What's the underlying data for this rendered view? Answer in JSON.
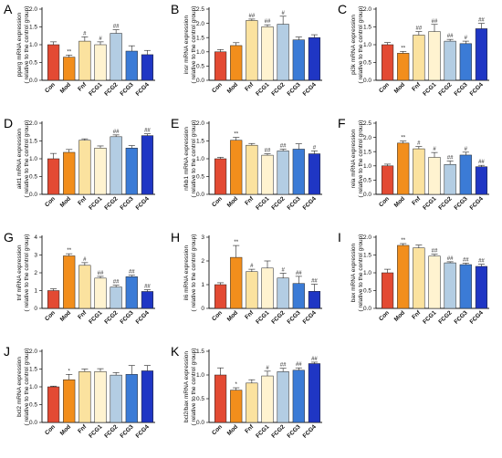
{
  "colors": [
    "#e34a33",
    "#f28e1c",
    "#fbe29f",
    "#fff3d0",
    "#b3cde3",
    "#3b7bd6",
    "#1f36c4"
  ],
  "chart_data": [
    {
      "letter": "A",
      "type": "bar",
      "ylabel": "pparg mRNA expression\n( relative to the control group)",
      "categories": [
        "Con",
        "Mod",
        "Fnf",
        "FCG1",
        "FCG2",
        "FCG3",
        "FCG4"
      ],
      "values": [
        1.0,
        0.65,
        1.1,
        1.0,
        1.32,
        0.82,
        0.72
      ],
      "errors": [
        0.08,
        0.06,
        0.12,
        0.08,
        0.1,
        0.15,
        0.12
      ],
      "sig": [
        "",
        "**",
        "#",
        "#",
        "##",
        "",
        ""
      ],
      "ylim": [
        0,
        2.0
      ],
      "ticks": [
        0.0,
        0.5,
        1.0,
        1.5,
        2.0
      ],
      "ticklabels": [
        "0.0",
        "0.5",
        "1.0",
        "1.5",
        "2.0"
      ]
    },
    {
      "letter": "B",
      "type": "bar",
      "ylabel": "insr mRNA expression\n( relative to the control group)",
      "categories": [
        "Con",
        "Mod",
        "Fnf",
        "FCG1",
        "FCG2",
        "FCG3",
        "FCG4"
      ],
      "values": [
        1.0,
        1.22,
        2.1,
        1.88,
        1.97,
        1.42,
        1.5
      ],
      "errors": [
        0.08,
        0.1,
        0.05,
        0.07,
        0.28,
        0.1,
        0.1
      ],
      "sig": [
        "",
        "",
        "##",
        "##",
        "#",
        "",
        ""
      ],
      "ylim": [
        0,
        2.5
      ],
      "ticks": [
        0.0,
        0.5,
        1.0,
        1.5,
        2.0,
        2.5
      ],
      "ticklabels": [
        "0.0",
        "0.5",
        "1.0",
        "1.5",
        "2.0",
        "2.5"
      ]
    },
    {
      "letter": "C",
      "type": "bar",
      "ylabel": "pi3k mRNA expression\n( relative to the control group)",
      "categories": [
        "Con",
        "Mod",
        "Fnf",
        "FCG1",
        "FCG2",
        "FCG3",
        "FCG4"
      ],
      "values": [
        1.0,
        0.76,
        1.27,
        1.37,
        1.1,
        1.03,
        1.45
      ],
      "errors": [
        0.06,
        0.05,
        0.1,
        0.2,
        0.05,
        0.07,
        0.15
      ],
      "sig": [
        "",
        "**",
        "##",
        "##",
        "##",
        "#",
        "##"
      ],
      "ylim": [
        0,
        2.0
      ],
      "ticks": [
        0.0,
        0.5,
        1.0,
        1.5,
        2.0
      ],
      "ticklabels": [
        "0.0",
        "0.5",
        "1.0",
        "1.5",
        "2.0"
      ]
    },
    {
      "letter": "D",
      "type": "bar",
      "ylabel": "akt1 mRNA expression\n( relative to the control group)",
      "categories": [
        "Con",
        "Mod",
        "Fnf",
        "FCG1",
        "FCG2",
        "FCG3",
        "FCG4"
      ],
      "values": [
        1.0,
        1.18,
        1.52,
        1.3,
        1.62,
        1.3,
        1.65
      ],
      "errors": [
        0.15,
        0.08,
        0.04,
        0.06,
        0.05,
        0.07,
        0.05
      ],
      "sig": [
        "",
        "",
        "",
        "",
        "##",
        "",
        "##"
      ],
      "ylim": [
        0,
        2.0
      ],
      "ticks": [
        0.0,
        0.5,
        1.0,
        1.5,
        2.0
      ],
      "ticklabels": [
        "0.0",
        "0.5",
        "1.0",
        "1.5",
        "2.0"
      ]
    },
    {
      "letter": "E",
      "type": "bar",
      "ylabel": "nfkb1 mRNA expression\n( relative to the control group)",
      "categories": [
        "Con",
        "Mod",
        "Fnf",
        "FCG1",
        "FCG2",
        "FCG3",
        "FCG4"
      ],
      "values": [
        1.0,
        1.52,
        1.38,
        1.1,
        1.22,
        1.27,
        1.14
      ],
      "errors": [
        0.04,
        0.08,
        0.05,
        0.04,
        0.05,
        0.15,
        0.08
      ],
      "sig": [
        "",
        "**",
        "",
        "##",
        "##",
        "",
        "#"
      ],
      "ylim": [
        0,
        2.0
      ],
      "ticks": [
        0.0,
        0.5,
        1.0,
        1.5,
        2.0
      ],
      "ticklabels": [
        "0.0",
        "0.5",
        "1.0",
        "1.5",
        "2.0"
      ]
    },
    {
      "letter": "F",
      "type": "bar",
      "ylabel": "rela mRNA expression\n( relative to the control group)",
      "categories": [
        "Con",
        "Mod",
        "Fnf",
        "FCG1",
        "FCG2",
        "FCG3",
        "FCG4"
      ],
      "values": [
        1.0,
        1.8,
        1.6,
        1.3,
        1.05,
        1.38,
        0.97
      ],
      "errors": [
        0.06,
        0.07,
        0.08,
        0.17,
        0.12,
        0.1,
        0.05
      ],
      "sig": [
        "",
        "**",
        "#",
        "#",
        "##",
        "#",
        "##"
      ],
      "ylim": [
        0,
        2.5
      ],
      "ticks": [
        0.0,
        0.5,
        1.0,
        1.5,
        2.0,
        2.5
      ],
      "ticklabels": [
        "0.0",
        "0.5",
        "1.0",
        "1.5",
        "2.0",
        "2.5"
      ]
    },
    {
      "letter": "G",
      "type": "bar",
      "ylabel": "tnf mRNA expression\n( relative to the control group)",
      "categories": [
        "Con",
        "Mod",
        "Fnf",
        "FCG1",
        "FCG2",
        "FCG3",
        "FCG4"
      ],
      "values": [
        1.0,
        2.95,
        2.42,
        1.7,
        1.2,
        1.78,
        0.95
      ],
      "errors": [
        0.1,
        0.12,
        0.15,
        0.1,
        0.1,
        0.08,
        0.1
      ],
      "sig": [
        "",
        "**",
        "#",
        "##",
        "##",
        "##",
        "##"
      ],
      "ylim": [
        0,
        4
      ],
      "ticks": [
        0,
        1,
        2,
        3,
        4
      ],
      "ticklabels": [
        "0",
        "1",
        "2",
        "3",
        "4"
      ]
    },
    {
      "letter": "H",
      "type": "bar",
      "ylabel": "il6 mRNA expression\n( relative to the control group)",
      "categories": [
        "Con",
        "Mod",
        "Fnf",
        "FCG1",
        "FCG2",
        "FCG3",
        "FCG4"
      ],
      "values": [
        1.0,
        2.15,
        1.55,
        1.7,
        1.28,
        1.05,
        0.72
      ],
      "errors": [
        0.08,
        0.5,
        0.1,
        0.3,
        0.2,
        0.3,
        0.3
      ],
      "sig": [
        "",
        "**",
        "#",
        "",
        "#",
        "##",
        "##"
      ],
      "ylim": [
        0,
        3
      ],
      "ticks": [
        0,
        1,
        2,
        3
      ],
      "ticklabels": [
        "0",
        "1",
        "2",
        "3"
      ]
    },
    {
      "letter": "I",
      "type": "bar",
      "ylabel": "bax mRNA expression\n( relative to the control group)",
      "categories": [
        "Con",
        "Mod",
        "Fnf",
        "FCG1",
        "FCG2",
        "FCG3",
        "FCG4"
      ],
      "values": [
        1.0,
        1.77,
        1.7,
        1.47,
        1.28,
        1.23,
        1.18
      ],
      "errors": [
        0.1,
        0.05,
        0.08,
        0.05,
        0.03,
        0.04,
        0.06
      ],
      "sig": [
        "",
        "**",
        "",
        "##",
        "##",
        "##",
        "##"
      ],
      "ylim": [
        0,
        2.0
      ],
      "ticks": [
        0.0,
        0.5,
        1.0,
        1.5,
        2.0
      ],
      "ticklabels": [
        "0.0",
        "0.5",
        "1.0",
        "1.5",
        "2.0"
      ]
    },
    {
      "letter": "J",
      "type": "bar",
      "ylabel": "bcl2 mRNA expression\n( relative to the control group)",
      "categories": [
        "Con",
        "Mod",
        "Fnf",
        "FCG1",
        "FCG2",
        "FCG3",
        "FCG4"
      ],
      "values": [
        1.0,
        1.2,
        1.43,
        1.43,
        1.33,
        1.35,
        1.45
      ],
      "errors": [
        0.02,
        0.15,
        0.07,
        0.08,
        0.07,
        0.25,
        0.15
      ],
      "sig": [
        "",
        "*",
        "",
        "",
        "",
        "",
        ""
      ],
      "ylim": [
        0,
        2.0
      ],
      "ticks": [
        0.0,
        0.5,
        1.0,
        1.5,
        2.0
      ],
      "ticklabels": [
        "0.0",
        "0.5",
        "1.0",
        "1.5",
        "2.0"
      ]
    },
    {
      "letter": "K",
      "type": "bar",
      "ylabel": "bcl2/bax mRNA expression\n( relative to the control group)",
      "categories": [
        "Con",
        "Mod",
        "Fnf",
        "FCG1",
        "FCG2",
        "FCG3",
        "FCG4"
      ],
      "values": [
        1.0,
        0.68,
        0.83,
        0.98,
        1.07,
        1.1,
        1.24
      ],
      "errors": [
        0.15,
        0.05,
        0.07,
        0.1,
        0.07,
        0.05,
        0.03
      ],
      "sig": [
        "",
        "*",
        "",
        "#",
        "##",
        "##",
        "##"
      ],
      "ylim": [
        0,
        1.5
      ],
      "ticks": [
        0.0,
        0.5,
        1.0,
        1.5
      ],
      "ticklabels": [
        "0.0",
        "0.5",
        "1.0",
        "1.5"
      ]
    }
  ]
}
